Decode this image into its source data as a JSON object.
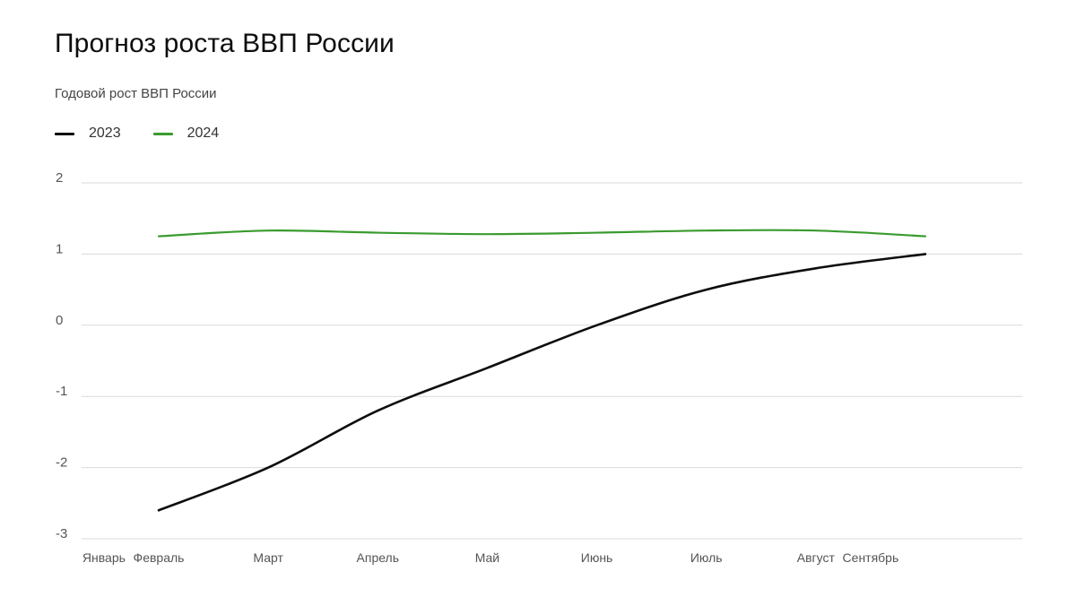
{
  "title": "Прогноз роста ВВП России",
  "subtitle": "Годовой рост ВВП России",
  "colors": {
    "2023": "#0d0d0d",
    "2024": "#3a9b2f",
    "grid": "#d9d9d9",
    "tick": "#555555"
  },
  "chart_data": {
    "type": "line",
    "title": "Прогноз роста ВВП России",
    "subtitle": "Годовой рост ВВП России",
    "categories": [
      "Январь",
      "Февраль",
      "Март",
      "Апрель",
      "Май",
      "Июнь",
      "Июль",
      "Август",
      "Сентябрь"
    ],
    "x_positions": [
      0.5,
      1,
      2,
      3,
      4,
      5,
      6,
      7,
      7.5
    ],
    "ylim": [
      -3,
      2
    ],
    "yticks": [
      2,
      1,
      0,
      -1,
      -2,
      -3
    ],
    "grid": true,
    "legend_placement": "top-left",
    "series": [
      {
        "name": "2023",
        "color": "#0d0d0d",
        "x": [
          1,
          2,
          3,
          4,
          5,
          6,
          7,
          8
        ],
        "y": [
          -2.6,
          -2.0,
          -1.2,
          -0.6,
          0.0,
          0.5,
          0.8,
          1.0
        ]
      },
      {
        "name": "2024",
        "color": "#3a9b2f",
        "x": [
          1,
          2,
          3,
          4,
          5,
          6,
          7,
          8
        ],
        "y": [
          1.25,
          1.33,
          1.3,
          1.28,
          1.3,
          1.33,
          1.33,
          1.25
        ]
      }
    ]
  }
}
